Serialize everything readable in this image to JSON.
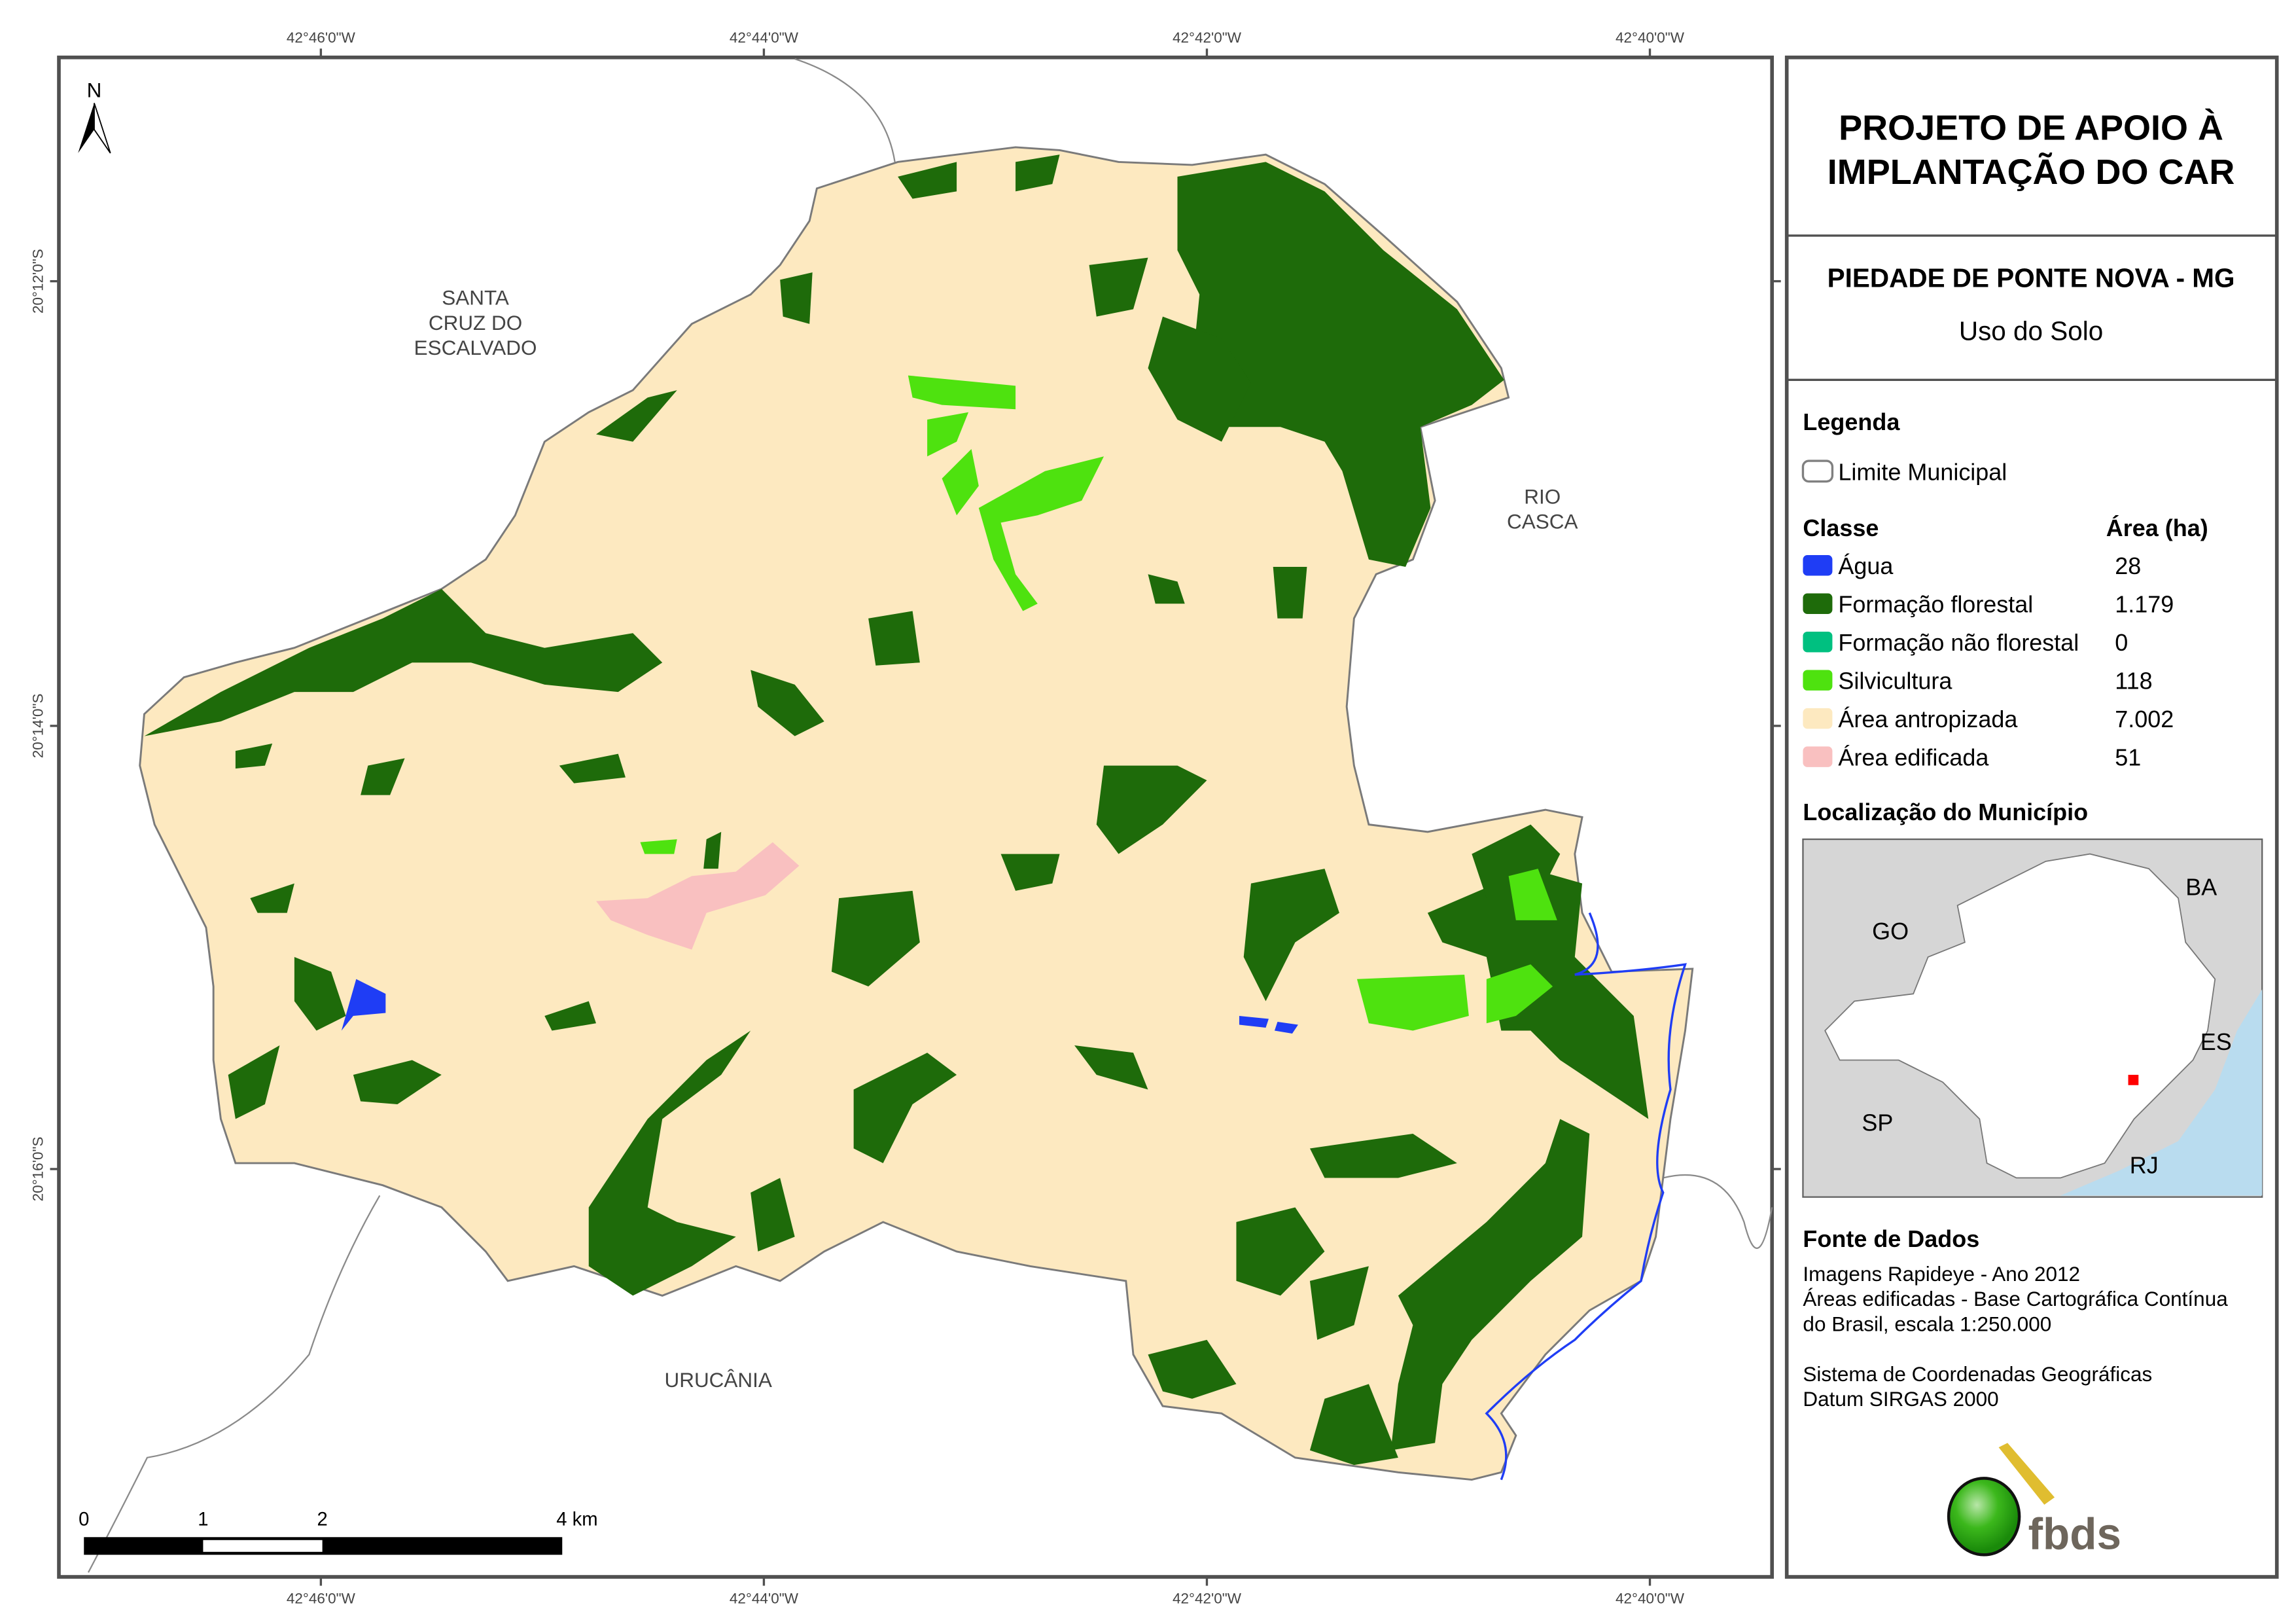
{
  "title": {
    "line1": "PROJETO DE APOIO À",
    "line2": "IMPLANTAÇÃO DO CAR",
    "municipality": "PIEDADE DE PONTE NOVA - MG",
    "subtitle": "Uso do Solo"
  },
  "legend": {
    "heading": "Legenda",
    "boundary_label": "Limite Municipal",
    "class_header": "Classe",
    "area_header": "Área (ha)",
    "classes": [
      {
        "label": "Água",
        "area": "28",
        "color": "#1f3df5"
      },
      {
        "label": "Formação florestal",
        "area": "1.179",
        "color": "#1e6b0a"
      },
      {
        "label": "Formação não florestal",
        "area": "0",
        "color": "#00c080"
      },
      {
        "label": "Silvicultura",
        "area": "118",
        "color": "#4ee20f"
      },
      {
        "label": "Área antropizada",
        "area": "7.002",
        "color": "#fde9c0"
      },
      {
        "label": "Área edificada",
        "area": "51",
        "color": "#f9c0c0"
      }
    ]
  },
  "location": {
    "heading": "Localização do Município",
    "labels": [
      "GO",
      "BA",
      "ES",
      "SP",
      "RJ"
    ],
    "marker_color": "#ff0000",
    "ocean_color": "#b9dcef"
  },
  "sources": {
    "heading": "Fonte de Dados",
    "lines": [
      "Imagens Rapideye - Ano 2012",
      "Áreas edificadas - Base Cartográfica Contínua",
      "do Brasil, escala 1:250.000",
      "Sistema de Coordenadas Geográficas",
      "Datum SIRGAS 2000"
    ]
  },
  "logo": {
    "text": "fbds"
  },
  "map": {
    "north": "N",
    "longitudes": [
      "42°46'0\"W",
      "42°44'0\"W",
      "42°42'0\"W",
      "42°40'0\"W"
    ],
    "latitudes": [
      "20°12'0\"S",
      "20°14'0\"S",
      "20°16'0\"S"
    ],
    "neighbors": {
      "santa_cruz": [
        "SANTA",
        "CRUZ DO",
        "ESCALVADO"
      ],
      "rio_casca": [
        "RIO",
        "CASCA"
      ],
      "urucania": "URUCÂNIA"
    },
    "scale_labels": [
      "0",
      "1",
      "2",
      "4 km"
    ]
  }
}
